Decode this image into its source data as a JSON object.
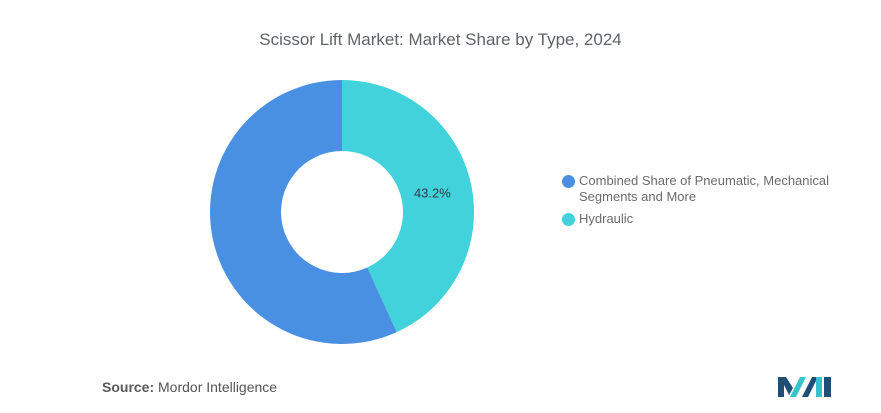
{
  "title": "Scissor Lift Market: Market Share by Type, 2024",
  "chart_data": {
    "type": "pie",
    "variant": "donut",
    "slices": [
      {
        "name": "Hydraulic",
        "value": 43.2,
        "label": "43.2%",
        "color": "#41d2dc"
      },
      {
        "name": "Combined Share of Pneumatic, Mechanical Segments and More",
        "value": 56.8,
        "label": "",
        "color": "#4a90e2"
      }
    ],
    "legend": {
      "placement": "right",
      "entries": [
        {
          "line1": "Combined Share of Pneumatic, Mechanical",
          "line2": "Segments and More",
          "color": "#4a90e2"
        },
        {
          "line1": "Hydraulic",
          "line2": "",
          "color": "#41d2dc"
        }
      ]
    }
  },
  "source": {
    "label": "Source:",
    "value": "Mordor Intelligence"
  },
  "logo": {
    "icon": "mordor-intelligence-logo",
    "colors": [
      "#1f4e79",
      "#35c4c9"
    ]
  }
}
